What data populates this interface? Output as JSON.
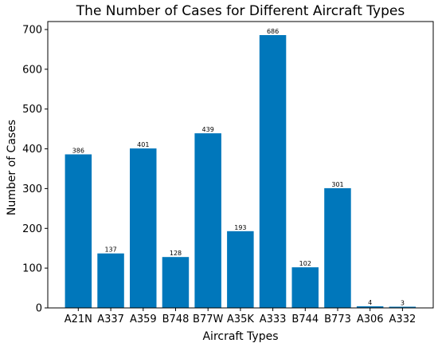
{
  "chart_data": {
    "type": "bar",
    "title": "The Number of Cases for Different Aircraft Types",
    "xlabel": "Aircraft Types",
    "ylabel": "Number of Cases",
    "categories": [
      "A21N",
      "A337",
      "A359",
      "B748",
      "B77W",
      "A35K",
      "A333",
      "B744",
      "B773",
      "A306",
      "A332"
    ],
    "values": [
      386,
      137,
      401,
      128,
      439,
      193,
      686,
      102,
      301,
      4,
      3
    ],
    "data_labels": [
      "386",
      "137",
      "401",
      "128",
      "439",
      "193",
      "686",
      "102",
      "301",
      "4",
      "3"
    ],
    "yticks": [
      "0",
      "100",
      "200",
      "300",
      "400",
      "500",
      "600",
      "700"
    ],
    "ylim": [
      0,
      720
    ],
    "grid": false,
    "bar_color": "#0077bb",
    "axis_color": "#000000"
  }
}
